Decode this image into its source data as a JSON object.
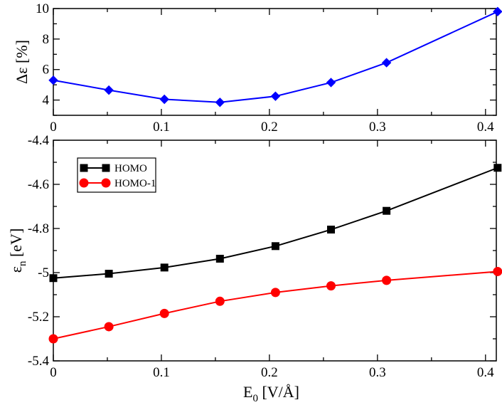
{
  "chart_data": [
    {
      "type": "line",
      "panel": "top",
      "title": "",
      "ylabel": {
        "main": "Δε",
        "unit": "[%]"
      },
      "xlabel": "",
      "xlim": [
        0,
        0.41
      ],
      "ylim": [
        3,
        10
      ],
      "xticks": [
        "0",
        "0.1",
        "0.2",
        "0.3",
        "0.4"
      ],
      "xtick_values": [
        0,
        0.1,
        0.2,
        0.3,
        0.4
      ],
      "yticks": [
        "4",
        "6",
        "8",
        "10"
      ],
      "ytick_values": [
        4,
        6,
        8,
        10
      ],
      "grid": false,
      "series": [
        {
          "name": "Δε",
          "color": "#0000ff",
          "marker": "diamond",
          "x": [
            0,
            0.0514,
            0.1028,
            0.1542,
            0.2056,
            0.257,
            0.3084,
            0.4112
          ],
          "values": [
            5.3,
            4.65,
            4.05,
            3.85,
            4.25,
            5.15,
            6.45,
            9.8
          ]
        }
      ]
    },
    {
      "type": "line",
      "panel": "bottom",
      "title": "",
      "ylabel": {
        "main": "ε",
        "sub": "n",
        "unit": "[eV]"
      },
      "xlabel": {
        "main": "E",
        "sub": "0",
        "unit": "[V/Å]"
      },
      "xlim": [
        0,
        0.41
      ],
      "ylim": [
        -5.4,
        -4.4
      ],
      "xticks": [
        "0",
        "0.1",
        "0.2",
        "0.3",
        "0.4"
      ],
      "xtick_values": [
        0,
        0.1,
        0.2,
        0.3,
        0.4
      ],
      "yticks": [
        "-5.4",
        "-5.2",
        "-5",
        "-4.8",
        "-4.6",
        "-4.4"
      ],
      "ytick_values": [
        -5.4,
        -5.2,
        -5.0,
        -4.8,
        -4.6,
        -4.4
      ],
      "grid": false,
      "legend_position": "top-left",
      "series": [
        {
          "name": "HOMO",
          "color": "#000000",
          "marker": "square",
          "x": [
            0,
            0.0514,
            0.1028,
            0.1542,
            0.2056,
            0.257,
            0.3084,
            0.4112
          ],
          "values": [
            -5.025,
            -5.005,
            -4.977,
            -4.937,
            -4.88,
            -4.805,
            -4.72,
            -4.525
          ]
        },
        {
          "name": "HOMO-1",
          "color": "#ff0000",
          "marker": "circle",
          "x": [
            0,
            0.0514,
            0.1028,
            0.1542,
            0.2056,
            0.257,
            0.3084,
            0.4112
          ],
          "values": [
            -5.3,
            -5.245,
            -5.185,
            -5.13,
            -5.09,
            -5.06,
            -5.035,
            -4.995
          ]
        }
      ]
    }
  ]
}
